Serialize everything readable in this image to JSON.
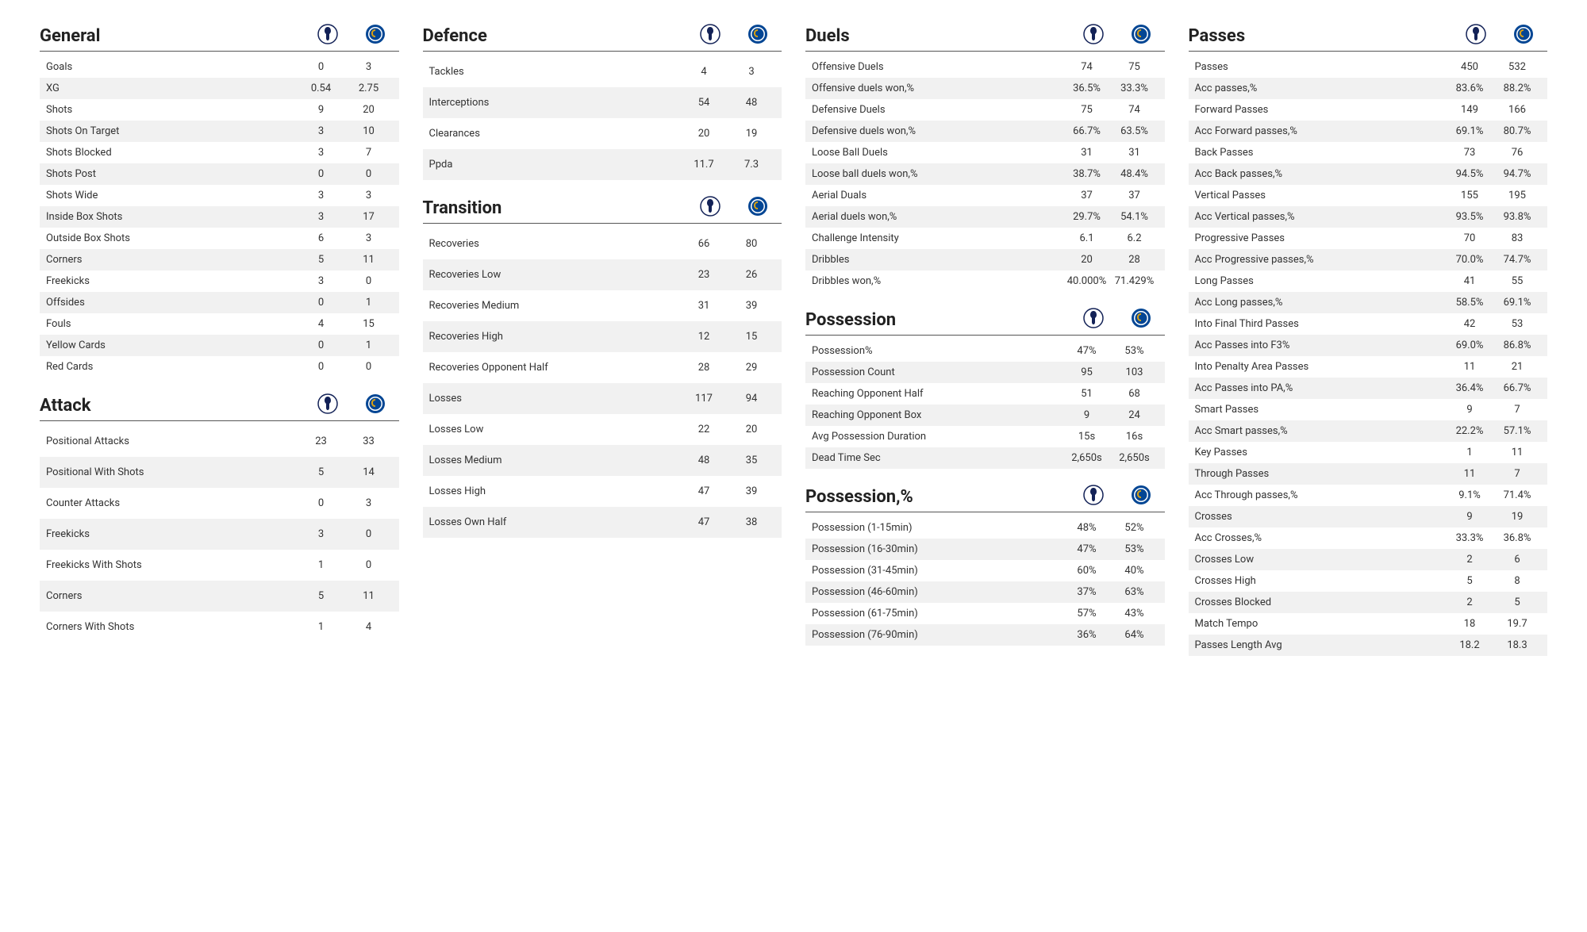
{
  "teams": {
    "home": "Tottenham",
    "away": "Chelsea"
  },
  "colors": {
    "background": "#ffffff",
    "row_alt": "#f1f1f1",
    "text": "#333333",
    "border": "#555555"
  },
  "fonts": {
    "title_size_pt": 22,
    "title_weight": 700,
    "row_size_pt": 13
  },
  "sections": {
    "general": {
      "title": "General",
      "rows": [
        {
          "label": "Goals",
          "h": "0",
          "a": "3"
        },
        {
          "label": "XG",
          "h": "0.54",
          "a": "2.75"
        },
        {
          "label": "Shots",
          "h": "9",
          "a": "20"
        },
        {
          "label": "Shots On Target",
          "h": "3",
          "a": "10"
        },
        {
          "label": "Shots Blocked",
          "h": "3",
          "a": "7"
        },
        {
          "label": "Shots Post",
          "h": "0",
          "a": "0"
        },
        {
          "label": "Shots Wide",
          "h": "3",
          "a": "3"
        },
        {
          "label": "Inside Box Shots",
          "h": "3",
          "a": "17"
        },
        {
          "label": "Outside Box Shots",
          "h": "6",
          "a": "3"
        },
        {
          "label": "Corners",
          "h": "5",
          "a": "11"
        },
        {
          "label": "Freekicks",
          "h": "3",
          "a": "0"
        },
        {
          "label": "Offsides",
          "h": "0",
          "a": "1"
        },
        {
          "label": "Fouls",
          "h": "4",
          "a": "15"
        },
        {
          "label": "Yellow Cards",
          "h": "0",
          "a": "1"
        },
        {
          "label": "Red Cards",
          "h": "0",
          "a": "0"
        }
      ]
    },
    "attack": {
      "title": "Attack",
      "rows": [
        {
          "label": "Positional Attacks",
          "h": "23",
          "a": "33"
        },
        {
          "label": "Positional With Shots",
          "h": "5",
          "a": "14"
        },
        {
          "label": "Counter Attacks",
          "h": "0",
          "a": "3"
        },
        {
          "label": "Freekicks",
          "h": "3",
          "a": "0"
        },
        {
          "label": "Freekicks With Shots",
          "h": "1",
          "a": "0"
        },
        {
          "label": "Corners",
          "h": "5",
          "a": "11"
        },
        {
          "label": "Corners With Shots",
          "h": "1",
          "a": "4"
        }
      ]
    },
    "defence": {
      "title": "Defence",
      "rows": [
        {
          "label": "Tackles",
          "h": "4",
          "a": "3"
        },
        {
          "label": "Interceptions",
          "h": "54",
          "a": "48"
        },
        {
          "label": "Clearances",
          "h": "20",
          "a": "19"
        },
        {
          "label": "Ppda",
          "h": "11.7",
          "a": "7.3"
        }
      ]
    },
    "transition": {
      "title": "Transition",
      "rows": [
        {
          "label": "Recoveries",
          "h": "66",
          "a": "80"
        },
        {
          "label": "Recoveries Low",
          "h": "23",
          "a": "26"
        },
        {
          "label": "Recoveries Medium",
          "h": "31",
          "a": "39"
        },
        {
          "label": "Recoveries High",
          "h": "12",
          "a": "15"
        },
        {
          "label": "Recoveries Opponent Half",
          "h": "28",
          "a": "29"
        },
        {
          "label": "Losses",
          "h": "117",
          "a": "94"
        },
        {
          "label": "Losses Low",
          "h": "22",
          "a": "20"
        },
        {
          "label": "Losses Medium",
          "h": "48",
          "a": "35"
        },
        {
          "label": "Losses High",
          "h": "47",
          "a": "39"
        },
        {
          "label": "Losses Own Half",
          "h": "47",
          "a": "38"
        }
      ]
    },
    "duels": {
      "title": "Duels",
      "rows": [
        {
          "label": "Offensive Duels",
          "h": "74",
          "a": "75"
        },
        {
          "label": "Offensive duels won,%",
          "h": "36.5%",
          "a": "33.3%"
        },
        {
          "label": "Defensive Duels",
          "h": "75",
          "a": "74"
        },
        {
          "label": "Defensive duels won,%",
          "h": "66.7%",
          "a": "63.5%"
        },
        {
          "label": "Loose Ball Duels",
          "h": "31",
          "a": "31"
        },
        {
          "label": "Loose ball duels won,%",
          "h": "38.7%",
          "a": "48.4%"
        },
        {
          "label": "Aerial Duals",
          "h": "37",
          "a": "37"
        },
        {
          "label": "Aerial duels won,%",
          "h": "29.7%",
          "a": "54.1%"
        },
        {
          "label": "Challenge Intensity",
          "h": "6.1",
          "a": "6.2"
        },
        {
          "label": "Dribbles",
          "h": "20",
          "a": "28"
        },
        {
          "label": "Dribbles won,%",
          "h": "40.000%",
          "a": "71.429%"
        }
      ]
    },
    "possession": {
      "title": "Possession",
      "rows": [
        {
          "label": "Possession%",
          "h": "47%",
          "a": "53%"
        },
        {
          "label": "Possession Count",
          "h": "95",
          "a": "103"
        },
        {
          "label": "Reaching Opponent Half",
          "h": "51",
          "a": "68"
        },
        {
          "label": "Reaching Opponent Box",
          "h": "9",
          "a": "24"
        },
        {
          "label": "Avg Possession Duration",
          "h": "15s",
          "a": "16s"
        },
        {
          "label": "Dead Time Sec",
          "h": "2,650s",
          "a": "2,650s"
        }
      ]
    },
    "possession_pct": {
      "title": "Possession,%",
      "rows": [
        {
          "label": "Possession (1-15min)",
          "h": "48%",
          "a": "52%"
        },
        {
          "label": "Possession (16-30min)",
          "h": "47%",
          "a": "53%"
        },
        {
          "label": "Possession (31-45min)",
          "h": "60%",
          "a": "40%"
        },
        {
          "label": "Possession (46-60min)",
          "h": "37%",
          "a": "63%"
        },
        {
          "label": "Possession (61-75min)",
          "h": "57%",
          "a": "43%"
        },
        {
          "label": "Possession (76-90min)",
          "h": "36%",
          "a": "64%"
        }
      ]
    },
    "passes": {
      "title": "Passes",
      "rows": [
        {
          "label": "Passes",
          "h": "450",
          "a": "532"
        },
        {
          "label": "Acc passes,%",
          "h": "83.6%",
          "a": "88.2%"
        },
        {
          "label": "Forward Passes",
          "h": "149",
          "a": "166"
        },
        {
          "label": "Acc Forward passes,%",
          "h": "69.1%",
          "a": "80.7%"
        },
        {
          "label": "Back Passes",
          "h": "73",
          "a": "76"
        },
        {
          "label": "Acc Back passes,%",
          "h": "94.5%",
          "a": "94.7%"
        },
        {
          "label": "Vertical Passes",
          "h": "155",
          "a": "195"
        },
        {
          "label": "Acc Vertical passes,%",
          "h": "93.5%",
          "a": "93.8%"
        },
        {
          "label": "Progressive Passes",
          "h": "70",
          "a": "83"
        },
        {
          "label": "Acc Progressive passes,%",
          "h": "70.0%",
          "a": "74.7%"
        },
        {
          "label": "Long Passes",
          "h": "41",
          "a": "55"
        },
        {
          "label": "Acc Long passes,%",
          "h": "58.5%",
          "a": "69.1%"
        },
        {
          "label": "Into Final Third Passes",
          "h": "42",
          "a": "53"
        },
        {
          "label": "Acc Passes into F3%",
          "h": "69.0%",
          "a": "86.8%"
        },
        {
          "label": "Into Penalty Area Passes",
          "h": "11",
          "a": "21"
        },
        {
          "label": "Acc Passes into PA,%",
          "h": "36.4%",
          "a": "66.7%"
        },
        {
          "label": "Smart Passes",
          "h": "9",
          "a": "7"
        },
        {
          "label": "Acc Smart passes,%",
          "h": "22.2%",
          "a": "57.1%"
        },
        {
          "label": "Key Passes",
          "h": "1",
          "a": "11"
        },
        {
          "label": "Through Passes",
          "h": "11",
          "a": "7"
        },
        {
          "label": "Acc Through passes,%",
          "h": "9.1%",
          "a": "71.4%"
        },
        {
          "label": "Crosses",
          "h": "9",
          "a": "19"
        },
        {
          "label": "Acc Crosses,%",
          "h": "33.3%",
          "a": "36.8%"
        },
        {
          "label": "Crosses Low",
          "h": "2",
          "a": "6"
        },
        {
          "label": "Crosses High",
          "h": "5",
          "a": "8"
        },
        {
          "label": "Crosses Blocked",
          "h": "2",
          "a": "5"
        },
        {
          "label": "Match Tempo",
          "h": "18",
          "a": "19.7"
        },
        {
          "label": "Passes Length Avg",
          "h": "18.2",
          "a": "18.3"
        }
      ]
    }
  }
}
